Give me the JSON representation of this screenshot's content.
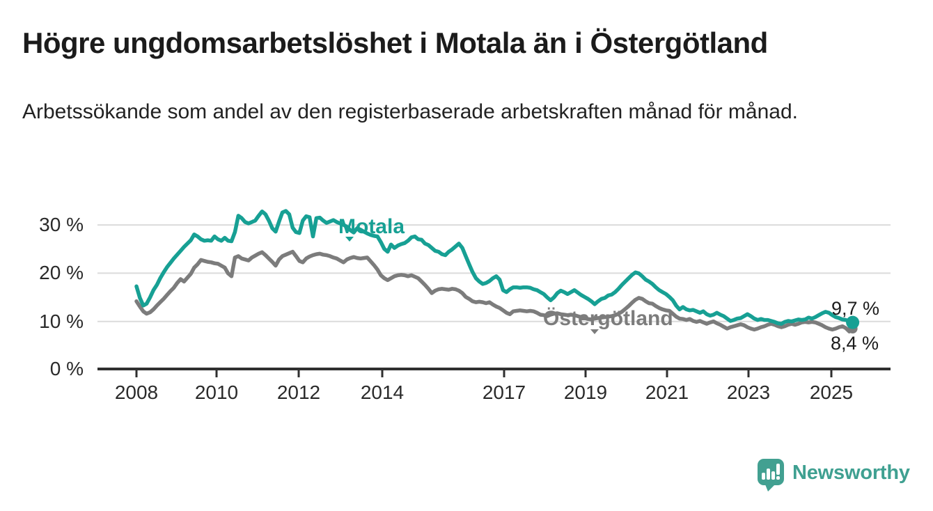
{
  "header": {
    "title": "Högre ungdomsarbetslöshet i Motala än i Östergötland",
    "subtitle": "Arbetssökande som andel av den registerbaserade arbetskraften månad för månad."
  },
  "chart_data": {
    "type": "line",
    "title": "Högre ungdomsarbetslöshet i Motala än i Östergötland",
    "unit": "percent of registered labour force",
    "x_ticks": [
      "2008",
      "2010",
      "2012",
      "2014",
      "2017",
      "2019",
      "2021",
      "2023",
      "2025"
    ],
    "y_ticks": [
      "30 %",
      "20 %",
      "10 %",
      "0 %"
    ],
    "ylim": [
      0,
      34
    ],
    "grid": "horizontal",
    "legend_position": "inline-labels",
    "start_month": "2008-01",
    "end_month": "2025-08",
    "frequency": "monthly",
    "series": [
      {
        "name": "Motala",
        "color": "#17a094",
        "end_label": "9,7 %",
        "values": [
          17.2,
          14.8,
          13.2,
          13.6,
          14.9,
          16.4,
          17.5,
          18.9,
          20.1,
          21.2,
          22.1,
          23.0,
          23.8,
          24.6,
          25.4,
          26.1,
          26.8,
          28.0,
          27.6,
          27.0,
          26.7,
          26.8,
          26.7,
          27.6,
          27.0,
          26.7,
          27.3,
          26.7,
          26.6,
          28.5,
          31.9,
          31.4,
          30.6,
          30.3,
          30.6,
          30.9,
          31.9,
          32.8,
          32.2,
          30.9,
          29.3,
          28.6,
          30.7,
          32.6,
          32.9,
          32.2,
          29.4,
          28.5,
          28.3,
          30.9,
          31.8,
          31.6,
          27.6,
          31.4,
          31.5,
          30.9,
          30.4,
          30.7,
          31.0,
          30.6,
          30.3,
          30.0,
          29.6,
          28.9,
          28.4,
          29.3,
          29.0,
          28.6,
          28.2,
          27.9,
          27.7,
          27.6,
          26.4,
          25.0,
          24.4,
          25.9,
          25.2,
          25.7,
          26.0,
          26.2,
          26.7,
          27.4,
          27.6,
          27.0,
          26.9,
          26.1,
          25.8,
          25.2,
          24.6,
          24.4,
          23.9,
          23.7,
          24.4,
          24.9,
          25.5,
          26.1,
          25.2,
          23.5,
          21.8,
          20.2,
          18.9,
          18.2,
          17.7,
          17.9,
          18.3,
          18.9,
          19.3,
          18.6,
          16.4,
          16.0,
          16.6,
          17.0,
          17.0,
          16.9,
          17.0,
          17.0,
          16.9,
          16.6,
          16.4,
          16.0,
          15.6,
          14.9,
          14.3,
          14.9,
          15.8,
          16.3,
          16.0,
          15.6,
          16.0,
          16.4,
          15.9,
          15.4,
          15.0,
          14.6,
          14.1,
          13.5,
          14.1,
          14.6,
          14.8,
          15.3,
          15.5,
          16.0,
          16.7,
          17.5,
          18.2,
          18.9,
          19.6,
          20.1,
          19.9,
          19.3,
          18.6,
          18.2,
          17.7,
          17.0,
          16.4,
          16.0,
          15.6,
          15.0,
          14.3,
          13.2,
          12.4,
          12.9,
          12.4,
          12.2,
          12.3,
          12.0,
          11.7,
          12.0,
          11.4,
          11.1,
          11.3,
          11.7,
          11.3,
          11.0,
          10.5,
          10.0,
          10.2,
          10.5,
          10.6,
          11.0,
          11.4,
          11.0,
          10.5,
          10.2,
          10.4,
          10.2,
          10.2,
          10.0,
          9.8,
          9.5,
          9.4,
          9.8,
          10.0,
          9.9,
          10.1,
          10.3,
          10.2,
          10.3,
          10.7,
          10.5,
          10.8,
          11.2,
          11.6,
          11.9,
          11.7,
          11.2,
          10.8,
          10.6,
          10.3,
          10.2,
          9.9,
          9.7
        ]
      },
      {
        "name": "Östergötland",
        "color": "#7c7c7c",
        "end_label": "8,4 %",
        "values": [
          14.1,
          13.0,
          12.0,
          11.5,
          11.8,
          12.4,
          13.2,
          13.9,
          14.6,
          15.4,
          16.2,
          16.9,
          17.9,
          18.7,
          18.2,
          19.0,
          19.8,
          21.1,
          21.8,
          22.7,
          22.5,
          22.3,
          22.2,
          22.0,
          21.9,
          21.5,
          21.1,
          19.9,
          19.3,
          23.2,
          23.5,
          23.0,
          22.8,
          22.6,
          23.2,
          23.6,
          24.0,
          24.3,
          23.7,
          23.0,
          22.3,
          21.5,
          22.8,
          23.5,
          23.8,
          24.1,
          24.4,
          23.5,
          22.5,
          22.2,
          23.0,
          23.4,
          23.7,
          23.9,
          24.0,
          23.8,
          23.7,
          23.5,
          23.2,
          23.0,
          22.6,
          22.2,
          22.8,
          23.1,
          23.3,
          23.1,
          23.0,
          23.1,
          23.2,
          22.4,
          21.6,
          20.7,
          19.5,
          18.9,
          18.5,
          18.9,
          19.3,
          19.5,
          19.6,
          19.5,
          19.3,
          19.5,
          19.2,
          18.9,
          18.2,
          17.5,
          16.7,
          15.8,
          16.3,
          16.6,
          16.7,
          16.6,
          16.5,
          16.7,
          16.6,
          16.3,
          15.8,
          15.0,
          14.6,
          14.1,
          13.9,
          14.0,
          13.9,
          13.7,
          13.9,
          13.4,
          13.0,
          12.7,
          12.2,
          11.7,
          11.4,
          12.0,
          12.1,
          12.2,
          12.1,
          12.0,
          12.1,
          12.0,
          11.7,
          11.3,
          11.2,
          11.0,
          11.3,
          11.5,
          11.6,
          11.4,
          11.3,
          11.2,
          11.3,
          11.2,
          11.0,
          10.8,
          10.6,
          10.4,
          10.3,
          10.5,
          10.6,
          10.7,
          10.8,
          10.9,
          11.0,
          11.2,
          11.5,
          11.9,
          12.5,
          13.1,
          13.8,
          14.4,
          14.8,
          14.6,
          14.1,
          13.7,
          13.6,
          13.1,
          12.7,
          12.4,
          12.2,
          12.1,
          11.5,
          10.9,
          10.5,
          10.4,
          10.2,
          10.4,
          10.0,
          9.8,
          10.0,
          9.7,
          9.4,
          9.7,
          9.9,
          9.5,
          9.2,
          8.8,
          8.4,
          8.7,
          8.9,
          9.1,
          9.3,
          9.1,
          8.7,
          8.4,
          8.2,
          8.4,
          8.7,
          8.9,
          9.2,
          9.4,
          9.2,
          8.9,
          8.7,
          8.9,
          9.2,
          9.4,
          9.2,
          9.4,
          9.7,
          9.8,
          9.7,
          9.8,
          9.7,
          9.4,
          9.1,
          8.7,
          8.4,
          8.2,
          8.4,
          8.7,
          8.9,
          8.5,
          7.8,
          8.4
        ]
      }
    ]
  },
  "footer": {
    "brand": "Newsworthy",
    "logo_icon": "bar-chart-speech-bubble-icon"
  }
}
